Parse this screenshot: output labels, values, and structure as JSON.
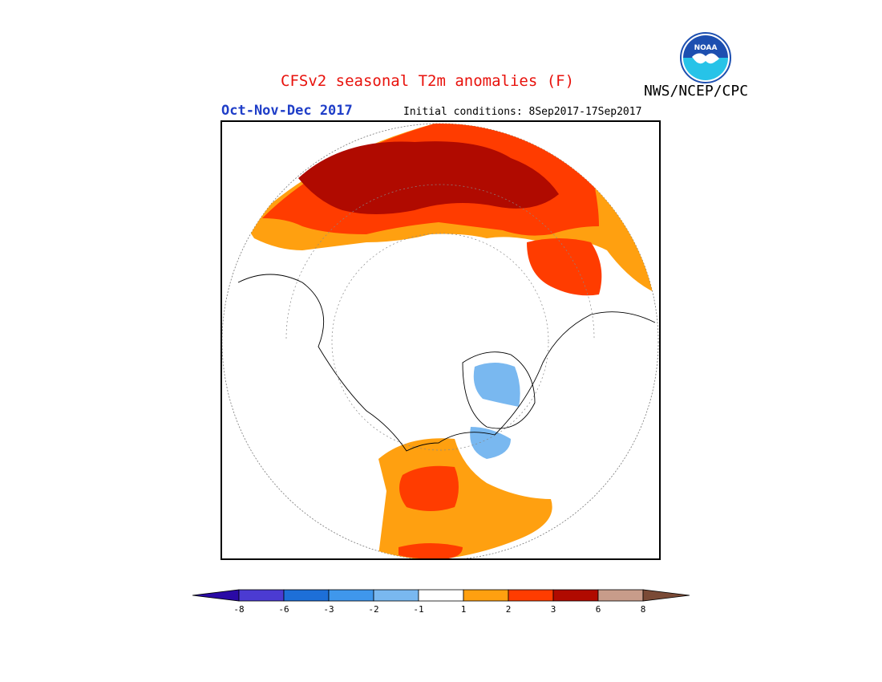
{
  "header": {
    "title": "CFSv2 seasonal T2m anomalies (F)",
    "season": "Oct-Nov-Dec 2017",
    "initial_conditions": "Initial conditions: 8Sep2017-17Sep2017",
    "agency": "NWS/NCEP/CPC",
    "logo_text": "NOAA"
  },
  "legend": {
    "labels": [
      "-8",
      "-6",
      "-3",
      "-2",
      "-1",
      "1",
      "2",
      "3",
      "6",
      "8"
    ],
    "colors": [
      "#2a0aa5",
      "#4b3bd2",
      "#1d6fd8",
      "#3f97ec",
      "#79b8f0",
      "#ffffff",
      "#ffa010",
      "#ff3c00",
      "#b00a00",
      "#c89c8a",
      "#7a4a36"
    ]
  },
  "colors": {
    "title": "#e8120c",
    "season": "#1f3ec8"
  }
}
